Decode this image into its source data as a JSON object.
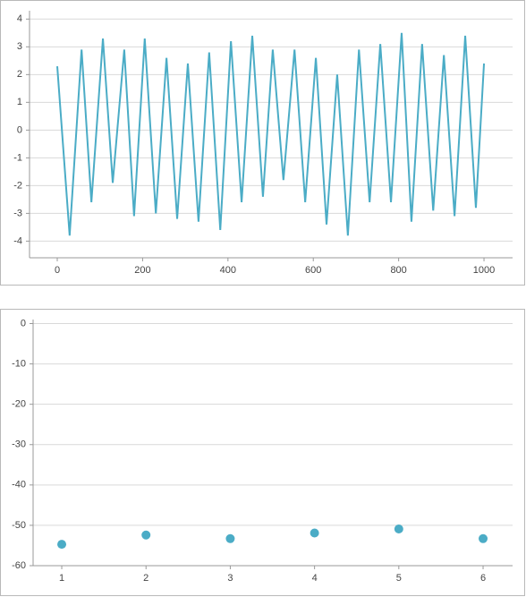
{
  "chart_data": [
    {
      "type": "line",
      "color": "#4bacc6",
      "grid": true,
      "x": [
        0,
        29,
        57,
        80,
        107,
        130,
        157,
        180,
        205,
        231,
        256,
        281,
        306,
        331,
        356,
        382,
        407,
        432,
        457,
        482,
        505,
        530,
        556,
        581,
        606,
        631,
        656,
        681,
        707,
        732,
        757,
        782,
        807,
        830,
        855,
        881,
        906,
        931,
        956,
        981,
        1000
      ],
      "values": [
        2.3,
        -3.8,
        2.9,
        -2.6,
        3.3,
        -1.9,
        2.9,
        -3.1,
        3.3,
        -3.0,
        2.6,
        -3.2,
        2.4,
        -3.3,
        2.8,
        -3.6,
        3.2,
        -2.6,
        3.4,
        -2.4,
        2.9,
        -1.8,
        2.9,
        -2.6,
        2.6,
        -3.4,
        2.0,
        -3.8,
        2.9,
        -2.6,
        3.1,
        -2.6,
        3.5,
        -3.3,
        3.1,
        -2.9,
        2.7,
        -3.1,
        3.4,
        -2.8,
        2.4
      ],
      "xlim": [
        -65,
        1067
      ],
      "xticks": [
        0,
        200,
        400,
        600,
        800,
        1000
      ],
      "ylim": [
        -4.6,
        4.3
      ],
      "yticks": [
        -4,
        -3,
        -2,
        -1,
        0,
        1,
        2,
        3,
        4
      ]
    },
    {
      "type": "scatter",
      "color": "#4bacc6",
      "grid": true,
      "x": [
        1,
        2,
        3,
        4,
        5,
        6
      ],
      "values": [
        -54.7,
        -52.4,
        -53.3,
        -51.9,
        -50.9,
        -53.3
      ],
      "xlim": [
        0.66,
        6.35
      ],
      "xticks": [
        1,
        2,
        3,
        4,
        5,
        6
      ],
      "ylim": [
        -60,
        1
      ],
      "yticks": [
        -60,
        -50,
        -40,
        -30,
        -20,
        -10,
        0
      ]
    }
  ]
}
